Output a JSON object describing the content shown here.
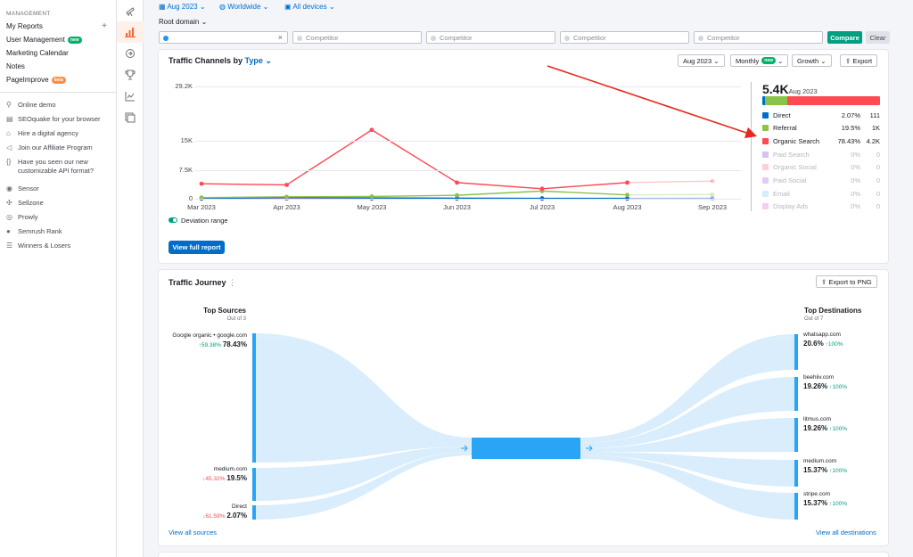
{
  "sidebar": {
    "section": "MANAGEMENT",
    "items": [
      {
        "label": "My Reports"
      },
      {
        "label": "User Management",
        "badge": "new"
      },
      {
        "label": "Marketing Calendar"
      },
      {
        "label": "Notes"
      },
      {
        "label": "PageImprove",
        "badge": "beta"
      }
    ],
    "plus": "+",
    "links": [
      {
        "icon": "pin-icon",
        "glyph": "⚲",
        "label": "Online demo"
      },
      {
        "icon": "seoquake-icon",
        "glyph": "▤",
        "label": "SEOquake for your browser"
      },
      {
        "icon": "agency-icon",
        "glyph": "⌂",
        "label": "Hire a digital agency"
      },
      {
        "icon": "megaphone-icon",
        "glyph": "◁",
        "label": "Join our Affiliate Program"
      },
      {
        "icon": "api-icon",
        "glyph": "{}",
        "label": "Have you seen our new customizable API format?"
      },
      {
        "icon": "sensor-icon",
        "glyph": "◉",
        "label": "Sensor"
      },
      {
        "icon": "sellzone-icon",
        "glyph": "✣",
        "label": "Sellzone"
      },
      {
        "icon": "prowly-icon",
        "glyph": "◎",
        "label": "Prowly"
      },
      {
        "icon": "semrush-rank-icon",
        "glyph": "●",
        "label": "Semrush Rank"
      },
      {
        "icon": "winners-losers-icon",
        "glyph": "☰",
        "label": "Winners & Losers"
      }
    ]
  },
  "rail": [
    "telescope-icon",
    "bar-chart-icon",
    "funnel-icon",
    "trophy-icon",
    "trend-icon",
    "pages-icon"
  ],
  "filters": {
    "date": "Aug 2023",
    "location": "Worldwide",
    "devices": "All devices",
    "root": "Root domain",
    "competitor_placeholder": "Competitor",
    "compare": "Compare",
    "clear": "Clear"
  },
  "traffic_channels": {
    "title_prefix": "Traffic Channels by",
    "title_type": "Type",
    "selects": {
      "month": "Aug 2023",
      "period": "Monthly",
      "period_badge": "new",
      "metric": "Growth"
    },
    "export": "Export",
    "deviation_label": "Deviation range",
    "view_full": "View full report",
    "total_value": "5.4K",
    "total_period": "Aug 2023",
    "legend": [
      {
        "name": "Direct",
        "pct": "2.07%",
        "val": "111",
        "color": "#006dca",
        "active": true
      },
      {
        "name": "Referral",
        "pct": "19.5%",
        "val": "1K",
        "color": "#8bc34a",
        "active": true
      },
      {
        "name": "Organic Search",
        "pct": "78.43%",
        "val": "4.2K",
        "color": "#ff4953",
        "active": true
      },
      {
        "name": "Paid Search",
        "pct": "0%",
        "val": "0",
        "color": "#d7c2f4",
        "active": false
      },
      {
        "name": "Organic Social",
        "pct": "0%",
        "val": "0",
        "color": "#fbd0d6",
        "active": false
      },
      {
        "name": "Paid Social",
        "pct": "0%",
        "val": "0",
        "color": "#e7c9f7",
        "active": false
      },
      {
        "name": "Email",
        "pct": "0%",
        "val": "0",
        "color": "#d4ecfb",
        "active": false
      },
      {
        "name": "Display Ads",
        "pct": "0%",
        "val": "0",
        "color": "#f4cdf0",
        "active": false
      }
    ]
  },
  "chart_data": {
    "type": "line",
    "x": [
      "Mar 2023",
      "Apr 2023",
      "May 2023",
      "Jun 2023",
      "Jul 2023",
      "Aug 2023",
      "Sep 2023"
    ],
    "yticks": [
      "0",
      "7.5K",
      "15K",
      "29.2K"
    ],
    "ylim": [
      0,
      29200
    ],
    "series": [
      {
        "name": "Organic Search",
        "color": "#ff4953",
        "values": [
          3900,
          3600,
          17900,
          4200,
          2600,
          4200,
          4600
        ],
        "last_faded": true
      },
      {
        "name": "Referral",
        "color": "#8bc34a",
        "values": [
          300,
          500,
          600,
          900,
          2000,
          1000,
          1100
        ],
        "last_faded": true
      },
      {
        "name": "Direct",
        "color": "#006dca",
        "values": [
          100,
          300,
          200,
          150,
          100,
          111,
          150
        ],
        "last_faded": true
      },
      {
        "name": "Paid Social",
        "color": "#c46bd4",
        "values": [
          0,
          0,
          0,
          0,
          0,
          0,
          0
        ],
        "last_faded": true
      }
    ]
  },
  "traffic_journey": {
    "title": "Traffic Journey",
    "export": "Export to PNG",
    "sources_title": "Top Sources",
    "sources_sub": "Out of 3",
    "destinations_title": "Top Destinations",
    "destinations_sub": "Out of 7",
    "sources": [
      {
        "name": "Google organic • google.com",
        "change": "↑59.38%",
        "dir": "up",
        "pct": "78.43%"
      },
      {
        "name": "medium.com",
        "change": "↓45.32%",
        "dir": "down",
        "pct": "19.5%"
      },
      {
        "name": "Direct",
        "change": "↓61.59%",
        "dir": "down",
        "pct": "2.07%"
      }
    ],
    "destinations": [
      {
        "name": "whatsapp.com",
        "pct": "20.6%",
        "change": "↑100%"
      },
      {
        "name": "beehiiv.com",
        "pct": "19.26%",
        "change": "↑100%"
      },
      {
        "name": "litmus.com",
        "pct": "19.26%",
        "change": "↑100%"
      },
      {
        "name": "medium.com",
        "pct": "15.37%",
        "change": "↑100%"
      },
      {
        "name": "stripe.com",
        "pct": "15.37%",
        "change": "↑100%"
      }
    ],
    "view_sources": "View all sources",
    "view_destinations": "View all destinations"
  }
}
